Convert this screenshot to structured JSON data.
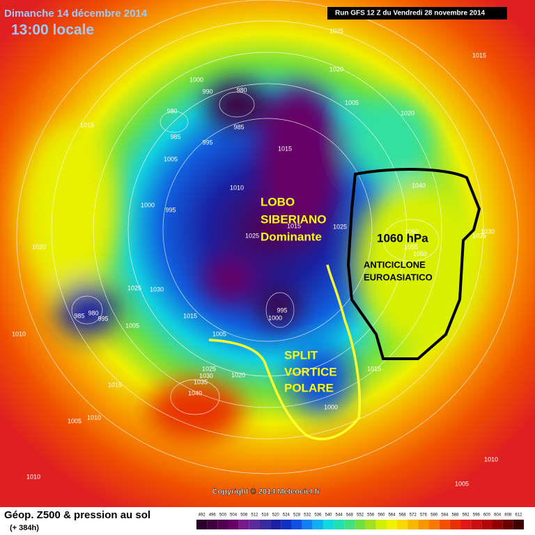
{
  "header": {
    "date": "Dimanche 14 décembre 2014",
    "time": "13:00 locale",
    "run": "Run GFS 12 Z du Vendredi 28 novembre 2014"
  },
  "annotations": {
    "lobo": [
      "LOBO",
      "SIBERIANO",
      "Dominante"
    ],
    "split": [
      "SPLIT",
      "VORTICE",
      "POLARE"
    ],
    "pressure": "1060 hPa",
    "anticyclone": [
      "ANTICICLONE",
      "EUROASIATICO"
    ]
  },
  "isobar_labels": [
    "1025",
    "1015",
    "1020",
    "1000",
    "990",
    "980",
    "1005",
    "1020",
    "980",
    "985",
    "985",
    "995",
    "1015",
    "1015",
    "1005",
    "1010",
    "1040",
    "1000",
    "995",
    "1015",
    "1025",
    "1025",
    "1020",
    "1030",
    "1035",
    "1060",
    "1055",
    "1050",
    "1025",
    "1030",
    "995",
    "1000",
    "985",
    "980",
    "995",
    "1005",
    "1015",
    "1005",
    "1010",
    "1015",
    "1025",
    "1030",
    "1035",
    "1020",
    "1040",
    "1015",
    "1010",
    "1005",
    "1000",
    "1005",
    "1010",
    "1010"
  ],
  "footer": {
    "title": "Géop. Z500 & pression au sol",
    "lead": "(+ 384h)",
    "copyright": "Copyright © 2014 Meteociel.fr"
  },
  "colorbar": {
    "values": [
      492,
      496,
      500,
      504,
      508,
      512,
      516,
      520,
      524,
      528,
      532,
      536,
      540,
      544,
      548,
      552,
      556,
      560,
      564,
      568,
      572,
      576,
      580,
      584,
      588,
      592,
      596,
      600,
      604,
      608,
      612
    ],
    "colors": [
      "#2a002a",
      "#3d003d",
      "#500050",
      "#660066",
      "#7a1a8a",
      "#5a2a9a",
      "#3a2aa0",
      "#1a20a0",
      "#1030c0",
      "#1050e0",
      "#1080f0",
      "#10b0f0",
      "#10d8e0",
      "#20e0b0",
      "#40e080",
      "#70e040",
      "#a0e020",
      "#d0f000",
      "#f0f000",
      "#f8d800",
      "#f8b800",
      "#f89800",
      "#f87800",
      "#f05000",
      "#e83000",
      "#e01818",
      "#c81010",
      "#b00808",
      "#900000",
      "#680000",
      "#400000"
    ]
  }
}
